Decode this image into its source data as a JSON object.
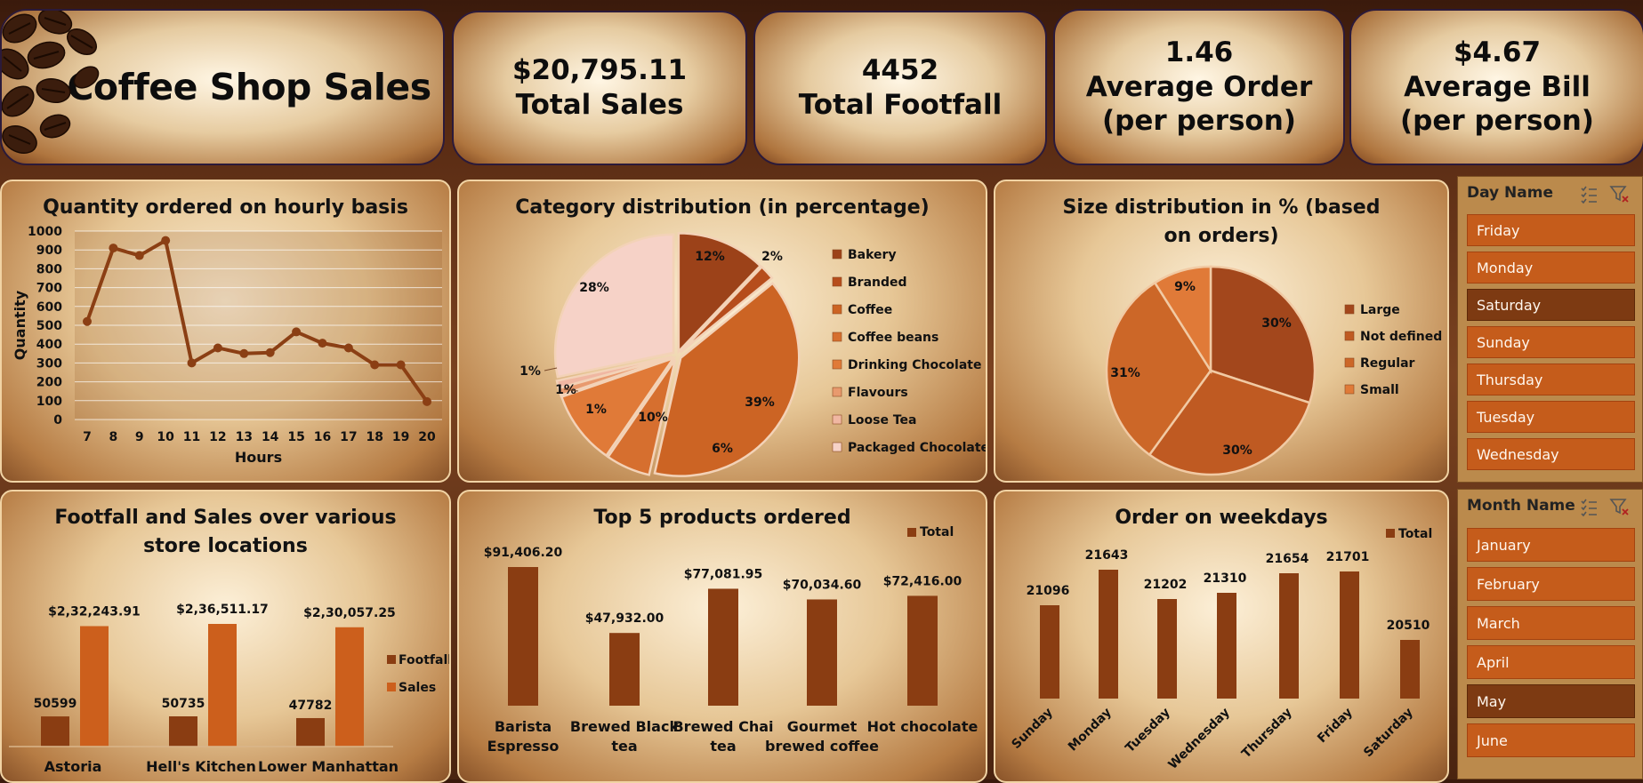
{
  "header": {
    "title": "Coffee Shop Sales",
    "kpis": [
      {
        "value": "$20,795.11",
        "label": "Total Sales"
      },
      {
        "value": "4452",
        "label": "Total Footfall"
      },
      {
        "value": "1.46",
        "label": "Average Order",
        "label2": "(per person)"
      },
      {
        "value": "$4.67",
        "label": "Average Bill",
        "label2": "(per person)"
      }
    ]
  },
  "slicers": {
    "day": {
      "title": "Day Name",
      "items": [
        "Friday",
        "Monday",
        "Saturday",
        "Sunday",
        "Thursday",
        "Tuesday",
        "Wednesday"
      ],
      "selected": "Saturday"
    },
    "month": {
      "title": "Month Name",
      "items": [
        "January",
        "February",
        "March",
        "April",
        "May",
        "June"
      ],
      "selected": "May"
    }
  },
  "colors": {
    "dark_brown": "#8a3d12",
    "orange": "#cc5f1c",
    "line": "#8b3f14"
  },
  "chart_data": [
    {
      "id": "hourly",
      "type": "line",
      "title": "Quantity ordered on hourly basis",
      "xlabel": "Hours",
      "ylabel": "Quantity",
      "x": [
        "7",
        "8",
        "9",
        "10",
        "11",
        "12",
        "13",
        "14",
        "15",
        "16",
        "17",
        "18",
        "19",
        "20"
      ],
      "values": [
        520,
        910,
        870,
        950,
        300,
        380,
        350,
        355,
        465,
        405,
        380,
        290,
        290,
        95
      ],
      "ylim": [
        0,
        1000
      ],
      "yticks": [
        0,
        100,
        200,
        300,
        400,
        500,
        600,
        700,
        800,
        900,
        1000
      ],
      "grid": true
    },
    {
      "id": "category",
      "type": "pie",
      "title": "Category distribution (in percentage)",
      "categories": [
        "Bakery",
        "Branded",
        "Coffee",
        "Coffee beans",
        "Drinking Chocolate",
        "Flavours",
        "Loose Tea",
        "Packaged Chocolate"
      ],
      "values": [
        12,
        2,
        39,
        6,
        10,
        1,
        1,
        28
      ],
      "labels": [
        "12%",
        "2%",
        "39%",
        "6%",
        "10%",
        "1%",
        "1%",
        "28%"
      ],
      "extra_label": "1%",
      "legend": "right"
    },
    {
      "id": "size",
      "type": "pie",
      "title": "Size distribution in % (based on orders)",
      "categories": [
        "Large",
        "Not defined",
        "Regular",
        "Small"
      ],
      "values": [
        30,
        30,
        31,
        9
      ],
      "labels": [
        "30%",
        "30%",
        "31%",
        "9%"
      ],
      "legend": "right"
    },
    {
      "id": "locations",
      "type": "bar",
      "title": "Footfall and Sales over various store locations",
      "categories": [
        "Astoria",
        "Hell's Kitchen",
        "Lower Manhattan"
      ],
      "series": [
        {
          "name": "Footfall",
          "values": [
            50599,
            50735,
            47782
          ],
          "labels": [
            "50599",
            "50735",
            "47782"
          ]
        },
        {
          "name": "Sales",
          "values": [
            232243.91,
            236511.17,
            230057.25
          ],
          "labels": [
            "$2,32,243.91",
            "$2,36,511.17",
            "$2,30,057.25"
          ]
        }
      ],
      "legend": "right"
    },
    {
      "id": "top5",
      "type": "bar",
      "title": "Top 5 products ordered",
      "categories": [
        "Barista Espresso",
        "Brewed Black tea",
        "Brewed Chai tea",
        "Gourmet brewed coffee",
        "Hot chocolate"
      ],
      "values": [
        91406.2,
        47932.0,
        77081.95,
        70034.6,
        72416.0
      ],
      "labels": [
        "$91,406.20",
        "$47,932.00",
        "$77,081.95",
        "$70,034.60",
        "$72,416.00"
      ],
      "series_name": "Total",
      "legend": "top-right"
    },
    {
      "id": "weekdays",
      "type": "bar",
      "title": "Order on weekdays",
      "categories": [
        "Sunday",
        "Monday",
        "Tuesday",
        "Wednesday",
        "Thursday",
        "Friday",
        "Saturday"
      ],
      "values": [
        21096,
        21643,
        21202,
        21310,
        21654,
        21701,
        20510
      ],
      "series_name": "Total",
      "legend": "top-right"
    }
  ]
}
